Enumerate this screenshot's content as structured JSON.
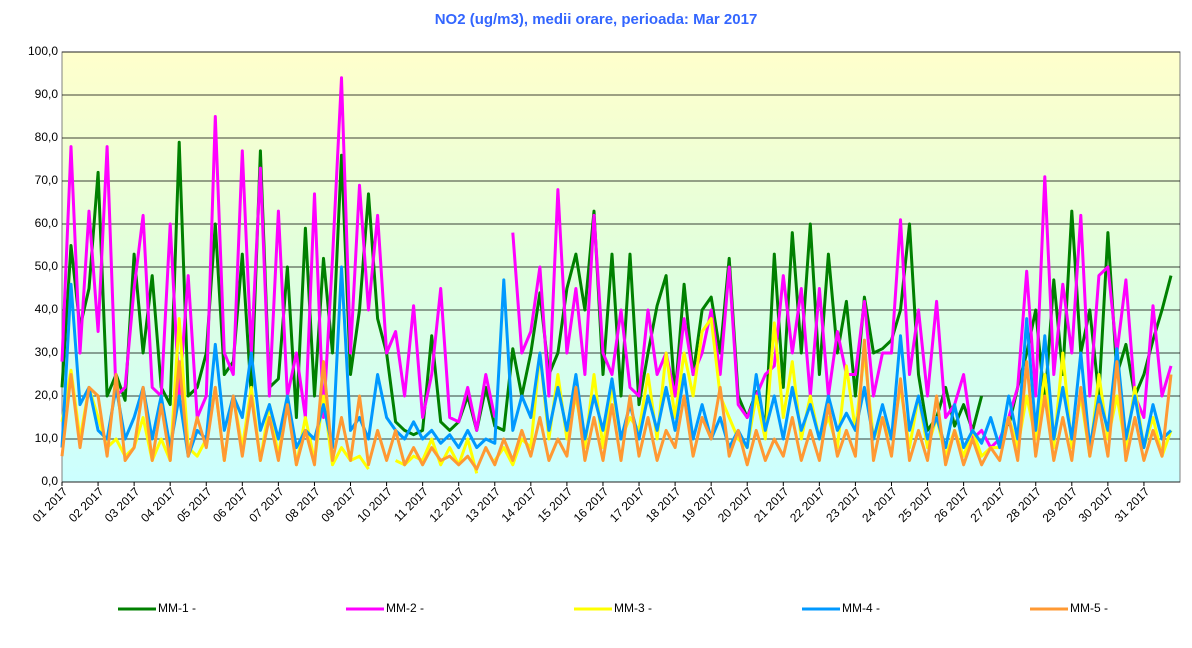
{
  "chart_data": {
    "type": "line",
    "title": "NO2 (ug/m3), medii orare, perioada:  Mar 2017",
    "categories": [
      "01 2017",
      null,
      null,
      null,
      "02 2017",
      null,
      null,
      null,
      "03 2017",
      null,
      null,
      null,
      "04 2017",
      null,
      null,
      null,
      "05 2017",
      null,
      null,
      null,
      "06 2017",
      null,
      null,
      null,
      "07 2017",
      null,
      null,
      null,
      "08 2017",
      null,
      null,
      null,
      "09 2017",
      null,
      null,
      null,
      "10 2017",
      null,
      null,
      null,
      "11 2017",
      null,
      null,
      null,
      "12 2017",
      null,
      null,
      null,
      "13 2017",
      null,
      null,
      null,
      "14 2017",
      null,
      null,
      null,
      "15 2017",
      null,
      null,
      null,
      "16 2017",
      null,
      null,
      null,
      "17 2017",
      null,
      null,
      null,
      "18 2017",
      null,
      null,
      null,
      "19 2017",
      null,
      null,
      null,
      "20 2017",
      null,
      null,
      null,
      "21 2017",
      null,
      null,
      null,
      "22 2017",
      null,
      null,
      null,
      "23 2017",
      null,
      null,
      null,
      "24 2017",
      null,
      null,
      null,
      "25 2017",
      null,
      null,
      null,
      "26 2017",
      null,
      null,
      null,
      "27 2017",
      null,
      null,
      null,
      "28 2017",
      null,
      null,
      null,
      "29 2017",
      null,
      null,
      null,
      "30 2017",
      null,
      null,
      null,
      "31 2017",
      null,
      null,
      null
    ],
    "ylim": [
      0,
      100
    ],
    "yticks": [
      {
        "value": 0,
        "label": "0,0"
      },
      {
        "value": 10,
        "label": "10,0"
      },
      {
        "value": 20,
        "label": "20,0"
      },
      {
        "value": 30,
        "label": "30,0"
      },
      {
        "value": 40,
        "label": "40,0"
      },
      {
        "value": 50,
        "label": "50,0"
      },
      {
        "value": 60,
        "label": "60,0"
      },
      {
        "value": 70,
        "label": "70,0"
      },
      {
        "value": 80,
        "label": "80,0"
      },
      {
        "value": 90,
        "label": "90,0"
      },
      {
        "value": 100,
        "label": "100,0"
      }
    ],
    "grid": true,
    "series": [
      {
        "name": "MM-1 -",
        "color": "#008000",
        "values": [
          22,
          55,
          36,
          45,
          72,
          20,
          25,
          19,
          53,
          30,
          48,
          22,
          18,
          79,
          20,
          22,
          30,
          60,
          25,
          28,
          53,
          20,
          77,
          22,
          24,
          50,
          15,
          59,
          20,
          52,
          30,
          76,
          25,
          40,
          67,
          38,
          30,
          14,
          12,
          11,
          12,
          34,
          14,
          12,
          14,
          20,
          12,
          22,
          13,
          12,
          31,
          20,
          30,
          44,
          25,
          30,
          45,
          53,
          40,
          63,
          25,
          53,
          20,
          53,
          18,
          30,
          41,
          48,
          20,
          46,
          25,
          40,
          43,
          30,
          52,
          20,
          15,
          21,
          12,
          53,
          22,
          58,
          30,
          60,
          25,
          53,
          30,
          42,
          20,
          43,
          30,
          31,
          33,
          40,
          60,
          25,
          12,
          15,
          22,
          13,
          18,
          12,
          20,
          null,
          null,
          13,
          22,
          30,
          40,
          18,
          47,
          25,
          63,
          30,
          40,
          20,
          58,
          25,
          32,
          20,
          25,
          33,
          40,
          48
        ]
      },
      {
        "name": "MM-2 -",
        "color": "#ff00ff",
        "values": [
          28,
          78,
          30,
          63,
          35,
          78,
          20,
          22,
          45,
          62,
          22,
          20,
          60,
          20,
          48,
          15,
          20,
          85,
          30,
          25,
          77,
          30,
          73,
          20,
          63,
          20,
          30,
          15,
          67,
          15,
          52,
          94,
          30,
          69,
          40,
          62,
          30,
          35,
          20,
          41,
          15,
          25,
          45,
          15,
          14,
          22,
          12,
          25,
          15,
          null,
          58,
          30,
          35,
          50,
          20,
          68,
          30,
          45,
          25,
          62,
          30,
          25,
          40,
          22,
          20,
          40,
          25,
          30,
          20,
          38,
          25,
          30,
          40,
          25,
          50,
          18,
          15,
          20,
          25,
          27,
          48,
          30,
          45,
          20,
          45,
          20,
          35,
          25,
          25,
          42,
          20,
          30,
          30,
          61,
          25,
          40,
          20,
          42,
          15,
          18,
          25,
          10,
          12,
          8,
          10,
          15,
          22,
          49,
          20,
          71,
          25,
          46,
          30,
          62,
          20,
          48,
          50,
          30,
          47,
          20,
          15,
          41,
          20,
          27
        ]
      },
      {
        "name": "MM-3 -",
        "color": "#ffff00",
        "values": [
          14,
          26,
          10,
          22,
          15,
          8,
          10,
          6,
          8,
          15,
          5,
          10,
          5,
          38,
          8,
          6,
          10,
          22,
          5,
          20,
          8,
          22,
          5,
          18,
          6,
          20,
          4,
          15,
          5,
          20,
          4,
          8,
          5,
          6,
          3,
          null,
          null,
          5,
          4,
          6,
          5,
          10,
          4,
          8,
          4,
          10,
          2,
          null,
          5,
          8,
          4,
          10,
          8,
          30,
          10,
          25,
          10,
          20,
          8,
          25,
          8,
          22,
          10,
          15,
          12,
          25,
          10,
          30,
          15,
          30,
          20,
          35,
          38,
          20,
          15,
          10,
          8,
          20,
          10,
          37,
          15,
          28,
          10,
          20,
          10,
          15,
          8,
          27,
          12,
          30,
          10,
          15,
          10,
          22,
          8,
          20,
          8,
          15,
          6,
          12,
          6,
          12,
          6,
          8,
          8,
          15,
          8,
          20,
          10,
          25,
          8,
          30,
          8,
          20,
          6,
          25,
          10,
          20,
          8,
          22,
          8,
          15,
          6,
          12
        ]
      },
      {
        "name": "MM-4 -",
        "color": "#0099ff",
        "values": [
          8,
          46,
          18,
          22,
          12,
          10,
          22,
          10,
          15,
          22,
          10,
          20,
          8,
          20,
          6,
          12,
          10,
          32,
          12,
          20,
          15,
          30,
          12,
          18,
          10,
          20,
          8,
          12,
          10,
          18,
          8,
          50,
          12,
          15,
          10,
          25,
          15,
          12,
          10,
          14,
          10,
          12,
          9,
          11,
          8,
          12,
          8,
          10,
          9,
          47,
          12,
          20,
          15,
          30,
          12,
          22,
          12,
          25,
          10,
          20,
          12,
          24,
          10,
          18,
          10,
          20,
          12,
          22,
          12,
          25,
          10,
          18,
          10,
          15,
          8,
          12,
          8,
          25,
          12,
          20,
          10,
          22,
          12,
          18,
          10,
          20,
          12,
          16,
          12,
          22,
          10,
          18,
          10,
          34,
          12,
          20,
          10,
          15,
          8,
          18,
          8,
          12,
          9,
          15,
          8,
          20,
          10,
          38,
          12,
          34,
          10,
          22,
          10,
          30,
          8,
          20,
          12,
          31,
          10,
          20,
          8,
          18,
          10,
          12
        ]
      },
      {
        "name": "MM-5 -",
        "color": "#ff9933",
        "values": [
          6,
          25,
          8,
          22,
          20,
          6,
          25,
          5,
          8,
          22,
          5,
          18,
          5,
          28,
          6,
          15,
          8,
          22,
          5,
          20,
          6,
          20,
          5,
          15,
          5,
          18,
          4,
          12,
          4,
          28,
          5,
          15,
          5,
          20,
          4,
          12,
          5,
          12,
          4,
          8,
          4,
          8,
          5,
          6,
          4,
          6,
          3,
          8,
          4,
          10,
          5,
          12,
          6,
          15,
          5,
          10,
          6,
          22,
          5,
          15,
          5,
          18,
          5,
          20,
          6,
          15,
          5,
          12,
          8,
          20,
          6,
          15,
          10,
          22,
          6,
          12,
          4,
          12,
          5,
          10,
          6,
          15,
          5,
          12,
          5,
          18,
          6,
          12,
          6,
          33,
          5,
          15,
          6,
          24,
          5,
          12,
          5,
          20,
          4,
          12,
          4,
          10,
          4,
          8,
          5,
          15,
          5,
          28,
          6,
          20,
          5,
          15,
          5,
          22,
          6,
          18,
          6,
          28,
          5,
          15,
          5,
          12,
          6,
          25
        ]
      }
    ]
  }
}
